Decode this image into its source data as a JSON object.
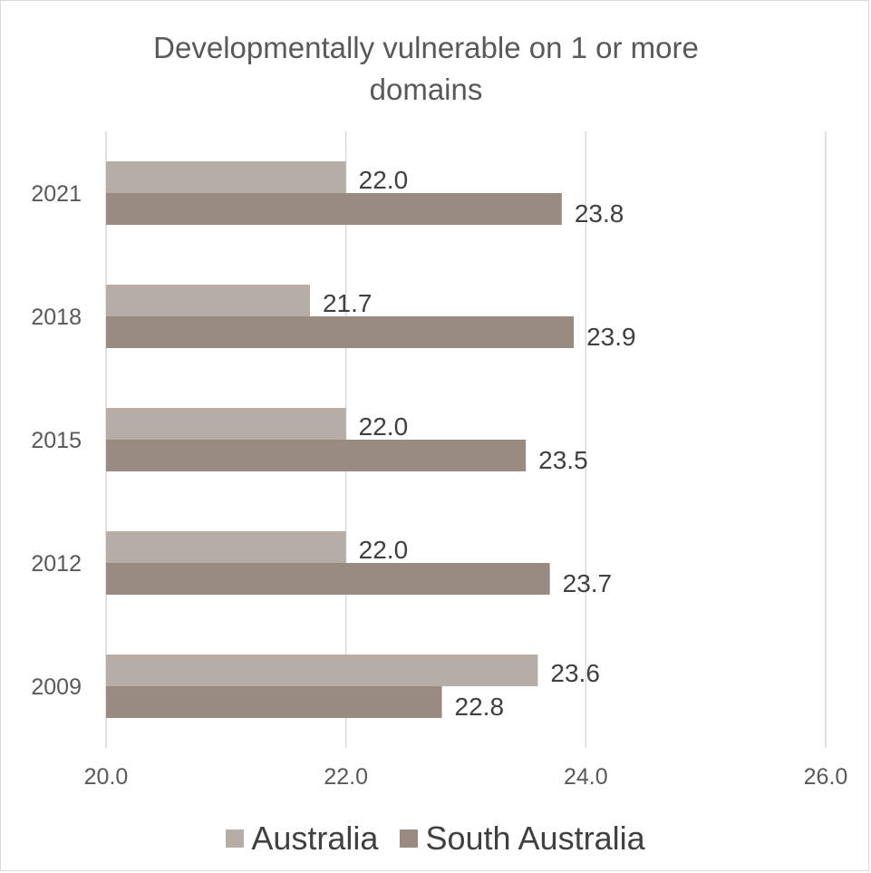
{
  "chart_data": {
    "type": "bar",
    "orientation": "horizontal",
    "title": "Developmentally vulnerable on 1 or more domains",
    "categories": [
      "2021",
      "2018",
      "2015",
      "2012",
      "2009"
    ],
    "series": [
      {
        "name": "Australia",
        "color": "#b5ada6",
        "values": [
          22.0,
          21.7,
          22.0,
          22.0,
          23.6
        ],
        "labels": [
          "22.0",
          "21.7",
          "22.0",
          "22.0",
          "23.6"
        ]
      },
      {
        "name": "South Australia",
        "color": "#998b80",
        "values": [
          23.8,
          23.9,
          23.5,
          23.7,
          22.8
        ],
        "labels": [
          "23.8",
          "23.9",
          "23.5",
          "23.7",
          "22.8"
        ]
      }
    ],
    "xlim": [
      20.0,
      26.0
    ],
    "x_ticks": [
      20.0,
      22.0,
      24.0,
      26.0
    ],
    "x_tick_labels": [
      "20.0",
      "22.0",
      "24.0",
      "26.0"
    ],
    "grid": true,
    "legend_position": "bottom"
  }
}
